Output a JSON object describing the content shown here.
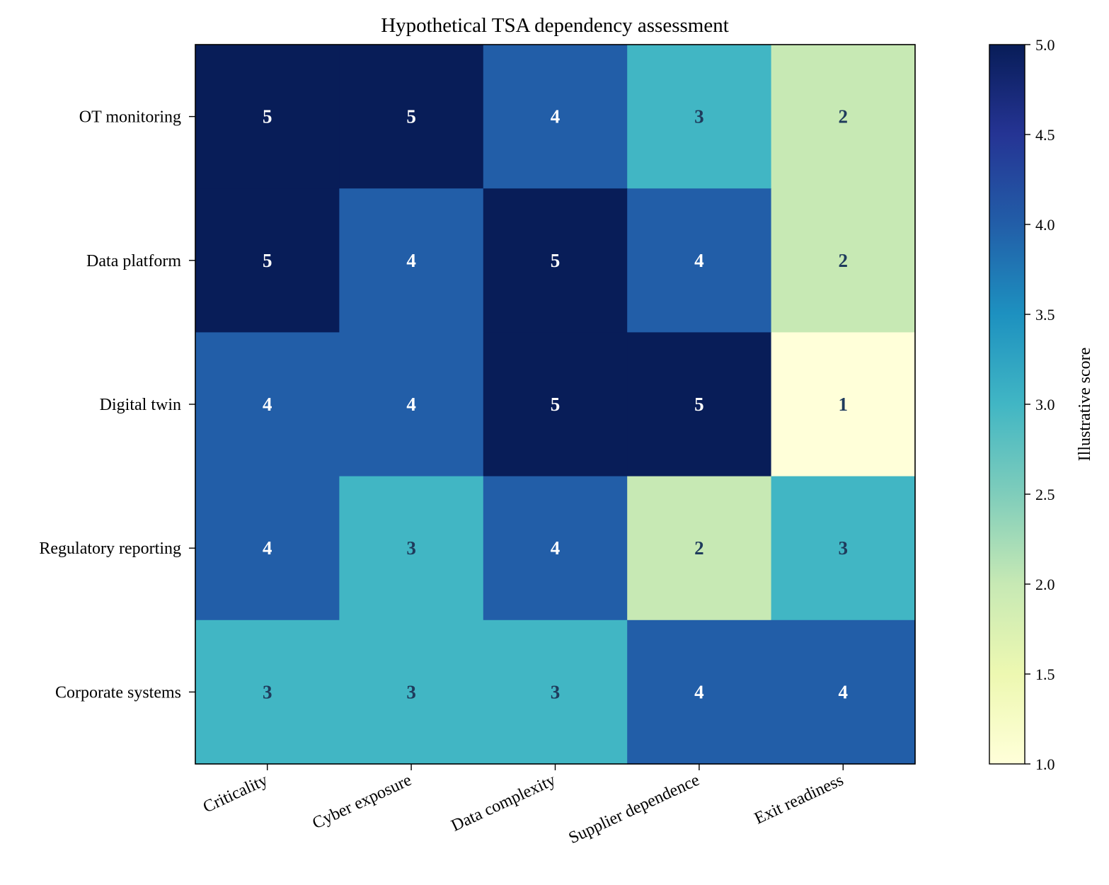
{
  "chart_data": {
    "type": "heatmap",
    "title": "Hypothetical TSA dependency assessment",
    "xlabel": "",
    "ylabel": "",
    "columns": [
      "Criticality",
      "Cyber exposure",
      "Data complexity",
      "Supplier dependence",
      "Exit readiness"
    ],
    "rows": [
      "OT monitoring",
      "Data platform",
      "Digital twin",
      "Regulatory reporting",
      "Corporate systems"
    ],
    "values": [
      [
        5,
        5,
        4,
        3,
        2
      ],
      [
        5,
        4,
        5,
        4,
        2
      ],
      [
        4,
        4,
        5,
        5,
        1
      ],
      [
        4,
        3,
        4,
        2,
        3
      ],
      [
        3,
        3,
        3,
        4,
        4
      ]
    ],
    "colorbar": {
      "label": "Illustrative score",
      "range": [
        1.0,
        5.0
      ],
      "ticks": [
        "1.0",
        "1.5",
        "2.0",
        "2.5",
        "3.0",
        "3.5",
        "4.0",
        "4.5",
        "5.0"
      ],
      "colormap": "YlGnBu"
    },
    "colors": {
      "cell_1": "#ffffd9",
      "cell_2": "#c7e9b4",
      "cell_3": "#41b6c4",
      "cell_4": "#225ea8",
      "cell_5": "#081d58",
      "text_dark": "#1f3b5c",
      "text_light": "#ffffff"
    },
    "grid": false,
    "legend": "colorbar-right"
  }
}
